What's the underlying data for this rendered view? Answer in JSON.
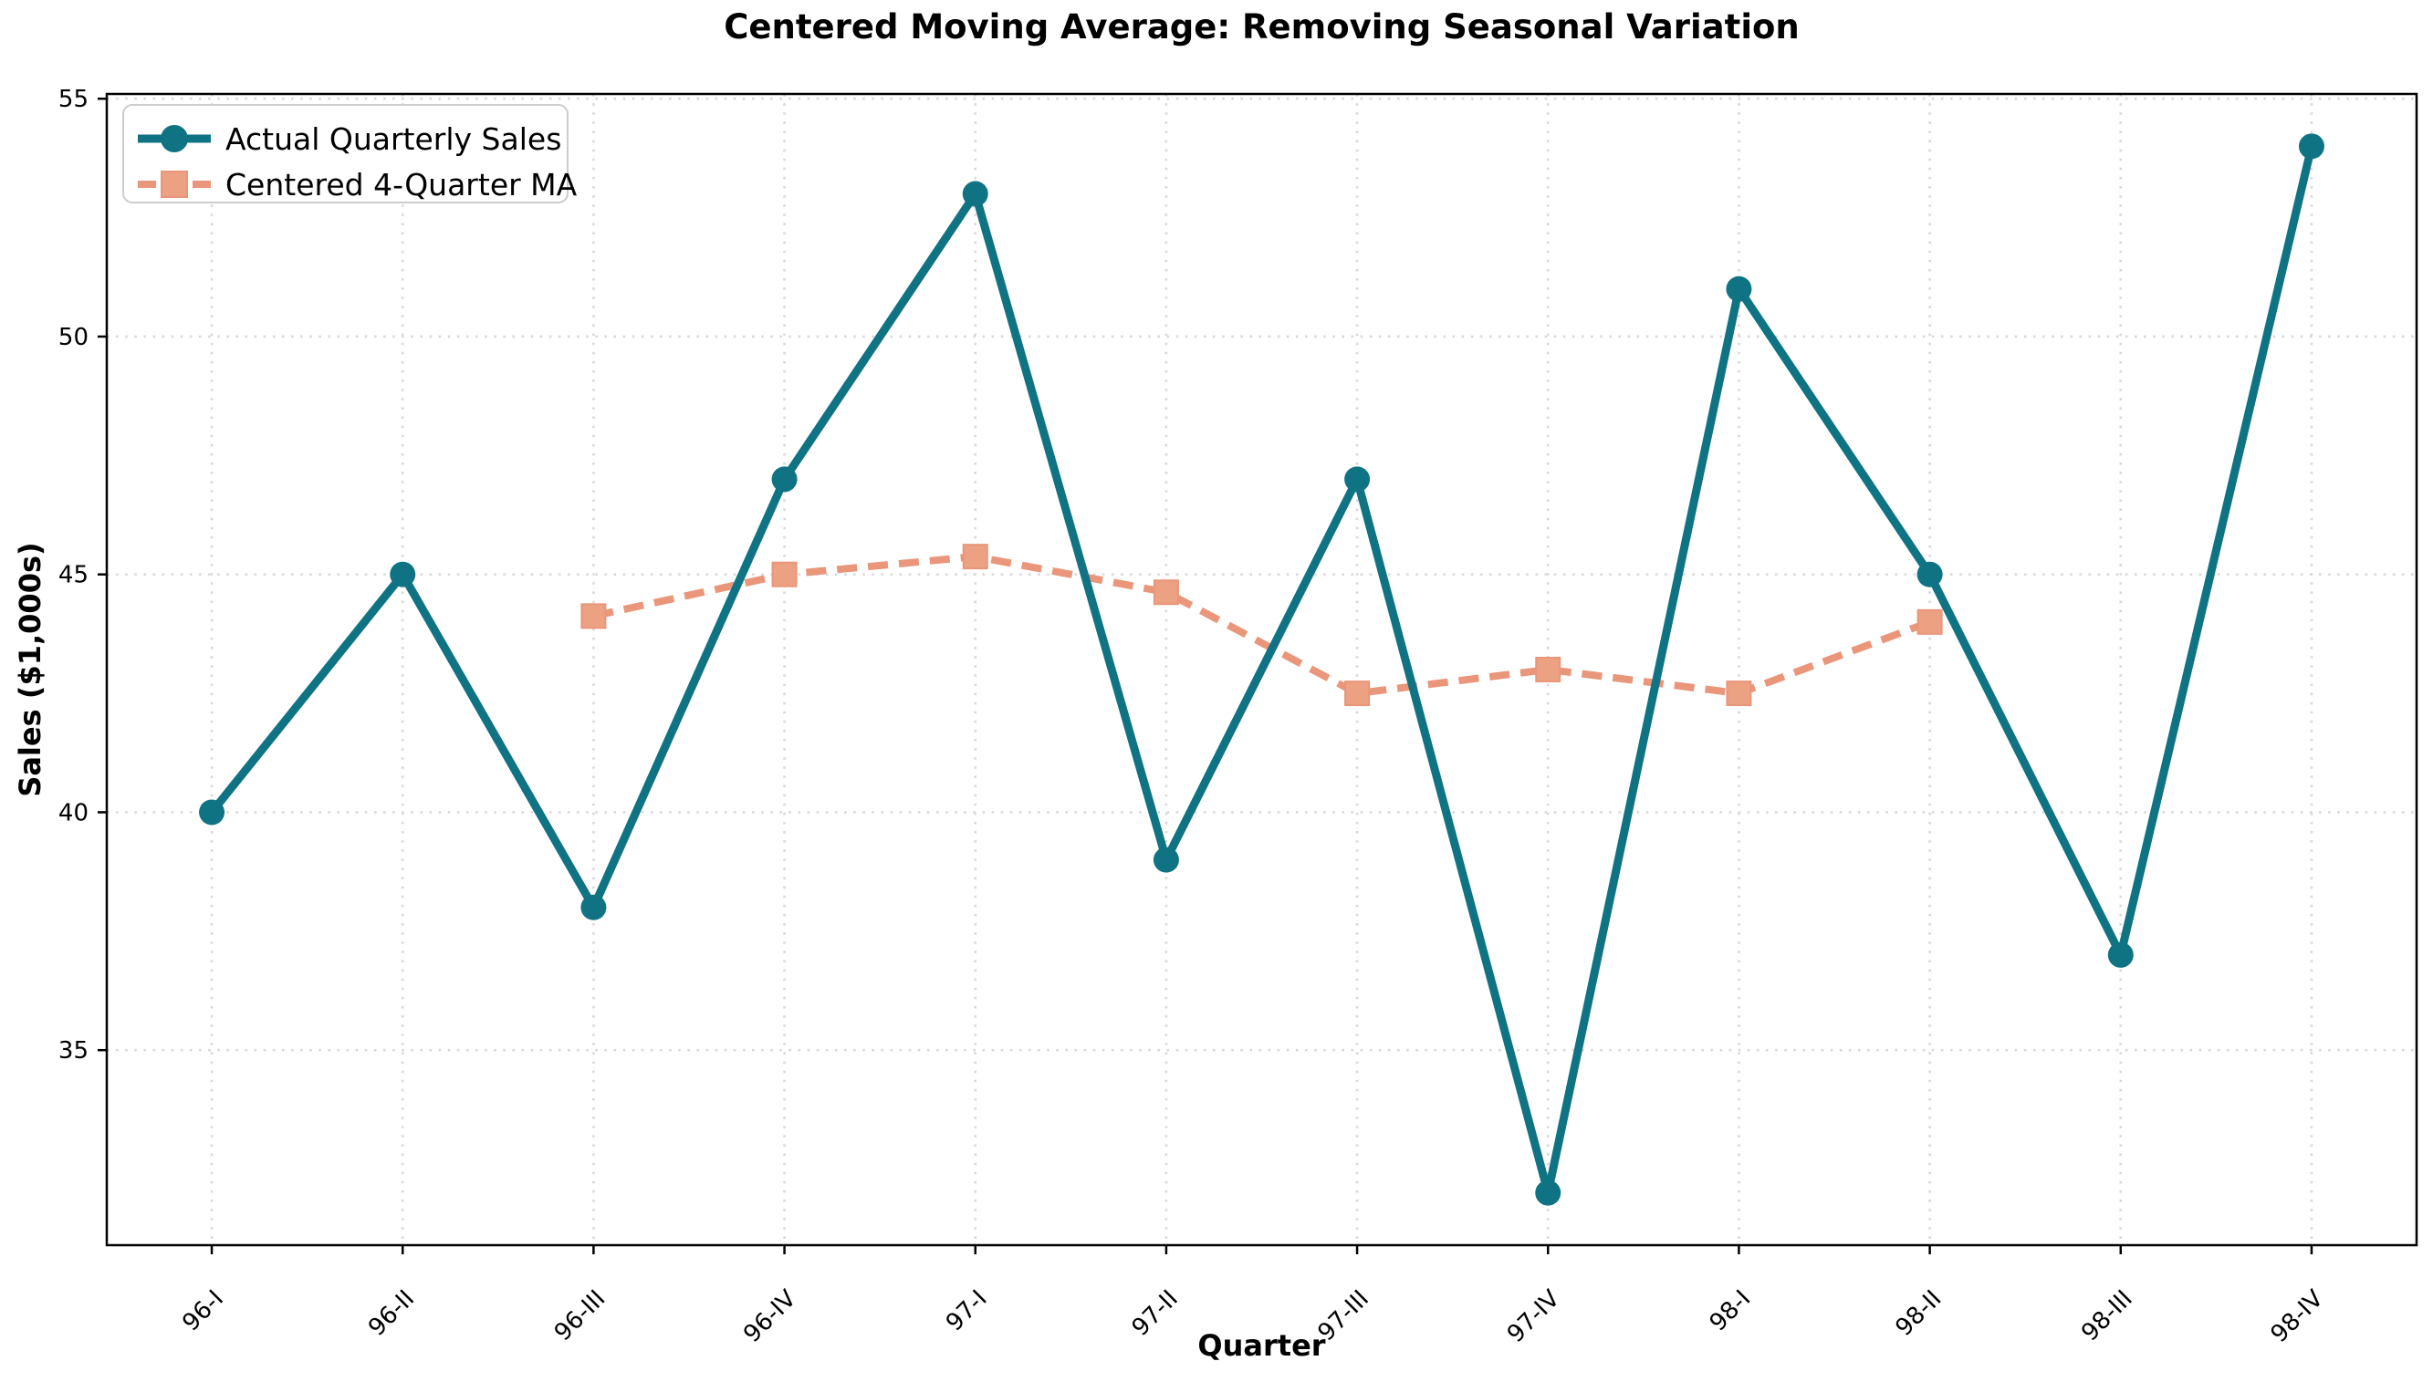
{
  "title": "Centered Moving Average: Removing Seasonal Variation",
  "chart_data": {
    "type": "line",
    "categories": [
      "96-I",
      "96-II",
      "96-III",
      "96-IV",
      "97-I",
      "97-II",
      "97-III",
      "97-IV",
      "98-I",
      "98-II",
      "98-III",
      "98-IV"
    ],
    "series": [
      {
        "name": "Actual Quarterly Sales",
        "values": [
          40,
          45,
          38,
          47,
          53,
          39,
          47,
          32,
          51,
          45,
          37,
          54
        ],
        "color": "#0F7383",
        "line_style": "solid",
        "marker": "circle"
      },
      {
        "name": "Centered 4-Quarter MA",
        "values": [
          null,
          null,
          44.125,
          45.0,
          45.375,
          44.625,
          42.5,
          43.0,
          42.5,
          44.0,
          null,
          null
        ],
        "color": "#E9967A",
        "marker_fill": "#ECA183",
        "line_style": "dashed",
        "marker": "square"
      }
    ],
    "xlabel": "Quarter",
    "ylabel": "Sales ($1,000s)",
    "yticks": [
      35,
      40,
      45,
      50,
      55
    ],
    "ylim": [
      30.9,
      55.1
    ],
    "grid": "dotted",
    "legend_position": "upper-left"
  }
}
